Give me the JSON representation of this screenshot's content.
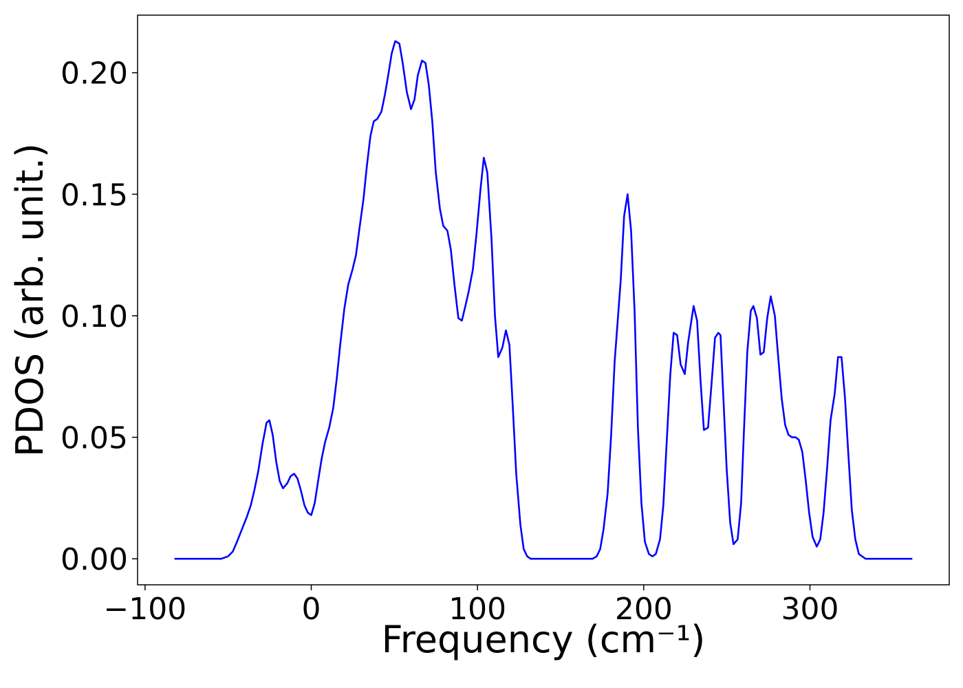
{
  "chart_data": {
    "type": "line",
    "xlabel": "Frequency (cm⁻¹)",
    "ylabel": "PDOS (arb. unit.)",
    "x": [
      -82.3,
      -54.2,
      -50.1,
      -47.2,
      -44.7,
      -41.8,
      -38.9,
      -36.4,
      -34.3,
      -31.9,
      -29.4,
      -26.9,
      -25.2,
      -23.2,
      -21.1,
      -19.0,
      -17.0,
      -14.5,
      -12.4,
      -10.3,
      -8.3,
      -6.2,
      -4.1,
      -2.1,
      0,
      2.1,
      4.1,
      6.2,
      8.3,
      10.8,
      13.2,
      15.3,
      17.4,
      19.9,
      22.3,
      24.8,
      26.9,
      29.0,
      31.4,
      33.5,
      35.6,
      37.6,
      39.7,
      42.2,
      44.3,
      46.3,
      48.4,
      50.5,
      53.0,
      55.0,
      57.5,
      60.0,
      62.1,
      64.1,
      66.6,
      68.7,
      70.7,
      72.8,
      74.9,
      77.4,
      79.4,
      81.9,
      84.0,
      86.1,
      88.5,
      90.6,
      92.7,
      94.7,
      97.2,
      99.3,
      101.8,
      103.8,
      105.9,
      108.4,
      110.5,
      112.5,
      115.0,
      117.1,
      119.2,
      121.2,
      123.3,
      125.8,
      127.8,
      129.9,
      132.0,
      134.1,
      169.2,
      171.7,
      173.8,
      175.8,
      178.3,
      180.4,
      182.5,
      186.2,
      188.2,
      190.3,
      192.4,
      194.5,
      196.5,
      198.6,
      200.7,
      203.1,
      205.2,
      207.3,
      209.8,
      211.8,
      213.9,
      216.0,
      218.0,
      220.1,
      222.2,
      224.7,
      226.7,
      230.0,
      232.1,
      234.2,
      236.2,
      238.7,
      240.8,
      242.9,
      244.9,
      246.2,
      247.8,
      249.9,
      252.0,
      254.0,
      256.5,
      258.6,
      260.2,
      262.3,
      264.4,
      266.0,
      268.1,
      270.2,
      272.2,
      274.3,
      276.4,
      278.9,
      280.9,
      283.0,
      285.1,
      287.1,
      289.2,
      291.3,
      293.3,
      295.4,
      297.5,
      299.5,
      301.6,
      304.1,
      306.2,
      308.2,
      310.3,
      312.4,
      314.9,
      316.9,
      319.0,
      321.1,
      323.1,
      325.2,
      327.3,
      329.4,
      331.4,
      333.5,
      361.6
    ],
    "series": [
      {
        "color": "#0000ff",
        "values": [
          0,
          0,
          0.001,
          0.003,
          0.007,
          0.012,
          0.017,
          0.022,
          0.028,
          0.036,
          0.047,
          0.056,
          0.057,
          0.051,
          0.04,
          0.032,
          0.029,
          0.031,
          0.034,
          0.035,
          0.033,
          0.028,
          0.022,
          0.019,
          0.018,
          0.023,
          0.032,
          0.041,
          0.048,
          0.054,
          0.062,
          0.074,
          0.088,
          0.103,
          0.113,
          0.119,
          0.125,
          0.136,
          0.148,
          0.162,
          0.174,
          0.18,
          0.181,
          0.184,
          0.191,
          0.199,
          0.208,
          0.213,
          0.212,
          0.204,
          0.192,
          0.185,
          0.189,
          0.199,
          0.205,
          0.204,
          0.195,
          0.18,
          0.159,
          0.144,
          0.137,
          0.135,
          0.127,
          0.113,
          0.099,
          0.098,
          0.104,
          0.11,
          0.119,
          0.133,
          0.152,
          0.165,
          0.159,
          0.132,
          0.1,
          0.083,
          0.087,
          0.094,
          0.088,
          0.063,
          0.035,
          0.014,
          0.004,
          0.001,
          0,
          0,
          0,
          0.001,
          0.004,
          0.012,
          0.027,
          0.051,
          0.081,
          0.115,
          0.141,
          0.15,
          0.135,
          0.102,
          0.054,
          0.023,
          0.007,
          0.002,
          0.001,
          0.002,
          0.008,
          0.022,
          0.049,
          0.076,
          0.093,
          0.092,
          0.08,
          0.076,
          0.089,
          0.104,
          0.098,
          0.073,
          0.053,
          0.054,
          0.072,
          0.091,
          0.093,
          0.092,
          0.068,
          0.037,
          0.015,
          0.006,
          0.008,
          0.023,
          0.051,
          0.085,
          0.102,
          0.104,
          0.099,
          0.084,
          0.085,
          0.099,
          0.108,
          0.1,
          0.083,
          0.066,
          0.055,
          0.051,
          0.05,
          0.05,
          0.049,
          0.044,
          0.032,
          0.019,
          0.009,
          0.005,
          0.008,
          0.019,
          0.037,
          0.057,
          0.068,
          0.083,
          0.083,
          0.066,
          0.043,
          0.02,
          0.008,
          0.002,
          0.001,
          0,
          0
        ]
      }
    ],
    "xlim": [
      -104.5,
      383.8
    ],
    "ylim": [
      -0.0107,
      0.2237
    ],
    "xticks": [
      {
        "value": -100,
        "label": "−100"
      },
      0,
      100,
      200,
      300
    ],
    "yticks": [
      {
        "value": 0,
        "label": "0.00"
      },
      {
        "value": 0.05,
        "label": "0.05"
      },
      {
        "value": 0.1,
        "label": "0.10"
      },
      {
        "value": 0.15,
        "label": "0.15"
      },
      {
        "value": 0.2,
        "label": "0.20"
      }
    ],
    "grid": false
  }
}
